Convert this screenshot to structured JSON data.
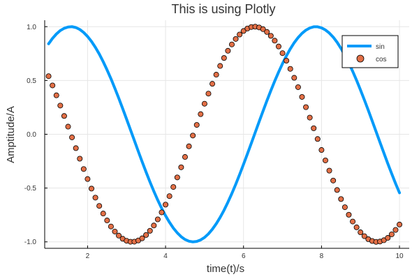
{
  "chart_data": {
    "type": "line",
    "title": "This is using Plotly",
    "xlabel": "time(t)/s",
    "ylabel": "Amptitude/A",
    "xlim": [
      0.9,
      10.25
    ],
    "ylim": [
      -1.06,
      1.06
    ],
    "grid": true,
    "legend_position": "top-right",
    "x_ticks": [
      2,
      4,
      6,
      8,
      10
    ],
    "x_tick_labels": [
      "2",
      "4",
      "6",
      "8",
      "10"
    ],
    "y_ticks": [
      1.0,
      0.5,
      0.0,
      -0.5,
      -1.0
    ],
    "y_tick_labels": [
      "1.0",
      "0.5",
      "0.0",
      "-0.5",
      "-1.0"
    ],
    "series": [
      {
        "name": "sin",
        "style": "line",
        "color": "#009af9",
        "x": [
          1.0,
          1.1,
          1.2,
          1.3,
          1.4,
          1.5,
          1.6,
          1.7,
          1.8,
          1.9,
          2.0,
          2.1,
          2.2,
          2.3,
          2.4,
          2.5,
          2.6,
          2.7,
          2.8,
          2.9,
          3.0,
          3.1,
          3.2,
          3.3,
          3.4,
          3.5,
          3.6,
          3.7,
          3.8,
          3.9,
          4.0,
          4.1,
          4.2,
          4.3,
          4.4,
          4.5,
          4.6,
          4.7,
          4.8,
          4.9,
          5.0,
          5.1,
          5.2,
          5.3,
          5.4,
          5.5,
          5.6,
          5.7,
          5.8,
          5.9,
          6.0,
          6.1,
          6.2,
          6.3,
          6.4,
          6.5,
          6.6,
          6.7,
          6.8,
          6.9,
          7.0,
          7.1,
          7.2,
          7.3,
          7.4,
          7.5,
          7.6,
          7.7,
          7.8,
          7.9,
          8.0,
          8.1,
          8.2,
          8.3,
          8.4,
          8.5,
          8.6,
          8.7,
          8.8,
          8.9,
          9.0,
          9.1,
          9.2,
          9.3,
          9.4,
          9.5,
          9.6,
          9.7,
          9.8,
          9.9,
          10.0
        ],
        "y": [
          0.841,
          0.891,
          0.932,
          0.964,
          0.985,
          0.997,
          1.0,
          0.992,
          0.974,
          0.946,
          0.909,
          0.863,
          0.808,
          0.746,
          0.675,
          0.598,
          0.516,
          0.427,
          0.335,
          0.239,
          0.141,
          0.042,
          -0.058,
          -0.158,
          -0.256,
          -0.351,
          -0.443,
          -0.53,
          -0.612,
          -0.688,
          -0.757,
          -0.818,
          -0.872,
          -0.916,
          -0.952,
          -0.978,
          -0.994,
          -1.0,
          -0.996,
          -0.982,
          -0.959,
          -0.926,
          -0.883,
          -0.832,
          -0.773,
          -0.706,
          -0.631,
          -0.551,
          -0.465,
          -0.374,
          -0.279,
          -0.182,
          -0.083,
          0.017,
          0.117,
          0.215,
          0.312,
          0.405,
          0.494,
          0.578,
          0.657,
          0.729,
          0.794,
          0.851,
          0.899,
          0.938,
          0.968,
          0.988,
          0.999,
          0.999,
          0.989,
          0.97,
          0.941,
          0.903,
          0.855,
          0.798,
          0.734,
          0.663,
          0.585,
          0.501,
          0.412,
          0.319,
          0.223,
          0.124,
          0.025,
          -0.075,
          -0.174,
          -0.272,
          -0.366,
          -0.458,
          -0.544
        ]
      },
      {
        "name": "cos",
        "style": "scatter",
        "color": "#e26f46",
        "x": [
          1.0,
          1.1,
          1.2,
          1.3,
          1.4,
          1.5,
          1.6,
          1.7,
          1.8,
          1.9,
          2.0,
          2.1,
          2.2,
          2.3,
          2.4,
          2.5,
          2.6,
          2.7,
          2.8,
          2.9,
          3.0,
          3.1,
          3.2,
          3.3,
          3.4,
          3.5,
          3.6,
          3.7,
          3.8,
          3.9,
          4.0,
          4.1,
          4.2,
          4.3,
          4.4,
          4.5,
          4.6,
          4.7,
          4.8,
          4.9,
          5.0,
          5.1,
          5.2,
          5.3,
          5.4,
          5.5,
          5.6,
          5.7,
          5.8,
          5.9,
          6.0,
          6.1,
          6.2,
          6.3,
          6.4,
          6.5,
          6.6,
          6.7,
          6.8,
          6.9,
          7.0,
          7.1,
          7.2,
          7.3,
          7.4,
          7.5,
          7.6,
          7.7,
          7.8,
          7.9,
          8.0,
          8.1,
          8.2,
          8.3,
          8.4,
          8.5,
          8.6,
          8.7,
          8.8,
          8.9,
          9.0,
          9.1,
          9.2,
          9.3,
          9.4,
          9.5,
          9.6,
          9.7,
          9.8,
          9.9,
          10.0
        ],
        "y": [
          0.54,
          0.454,
          0.362,
          0.267,
          0.17,
          0.071,
          -0.029,
          -0.129,
          -0.227,
          -0.323,
          -0.416,
          -0.505,
          -0.589,
          -0.666,
          -0.737,
          -0.801,
          -0.857,
          -0.904,
          -0.942,
          -0.971,
          -0.99,
          -0.999,
          -0.998,
          -0.987,
          -0.967,
          -0.936,
          -0.897,
          -0.848,
          -0.791,
          -0.726,
          -0.654,
          -0.575,
          -0.49,
          -0.401,
          -0.307,
          -0.211,
          -0.112,
          -0.012,
          0.087,
          0.187,
          0.284,
          0.378,
          0.469,
          0.554,
          0.635,
          0.709,
          0.776,
          0.835,
          0.886,
          0.927,
          0.96,
          0.983,
          0.997,
          1.0,
          0.993,
          0.977,
          0.951,
          0.915,
          0.87,
          0.816,
          0.754,
          0.684,
          0.608,
          0.525,
          0.438,
          0.347,
          0.252,
          0.155,
          0.056,
          -0.044,
          -0.146,
          -0.243,
          -0.338,
          -0.43,
          -0.518,
          -0.602,
          -0.678,
          -0.748,
          -0.811,
          -0.865,
          -0.911,
          -0.947,
          -0.975,
          -0.992,
          -1.0,
          -0.997,
          -0.985,
          -0.963,
          -0.93,
          -0.889,
          -0.839
        ]
      }
    ]
  }
}
